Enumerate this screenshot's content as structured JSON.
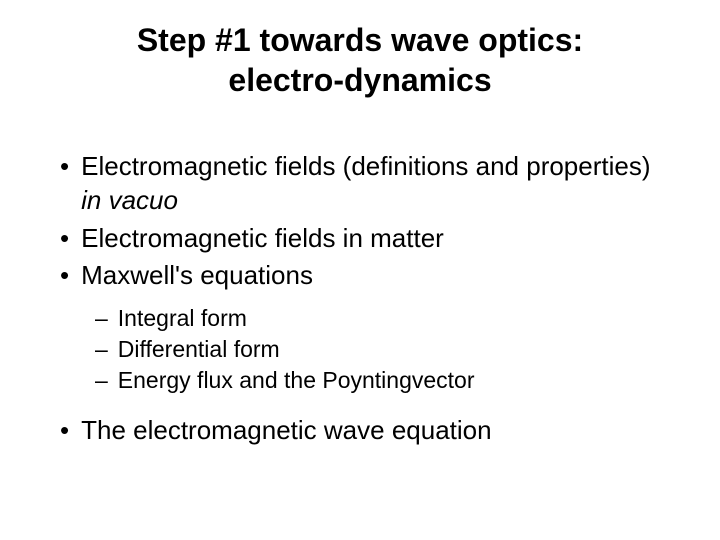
{
  "title_line1": "Step #1 towards wave optics:",
  "title_line2": "electro-dynamics",
  "bullets": {
    "b1_pre": "Electromagnetic fields (definitions and properties) ",
    "b1_italic": "in vacuo",
    "b2": "Electromagnetic fields in matter",
    "b3": "Maxwell's equations",
    "b4": "The electromagnetic wave equation"
  },
  "sub": {
    "s1": "Integral form",
    "s2": "Differential form",
    "s3": "Energy flux and the Poyntingvector"
  },
  "style": {
    "background_color": "#ffffff",
    "text_color": "#000000",
    "title_fontsize": 32,
    "main_fontsize": 26,
    "sub_fontsize": 23,
    "font_family": "Arial"
  }
}
